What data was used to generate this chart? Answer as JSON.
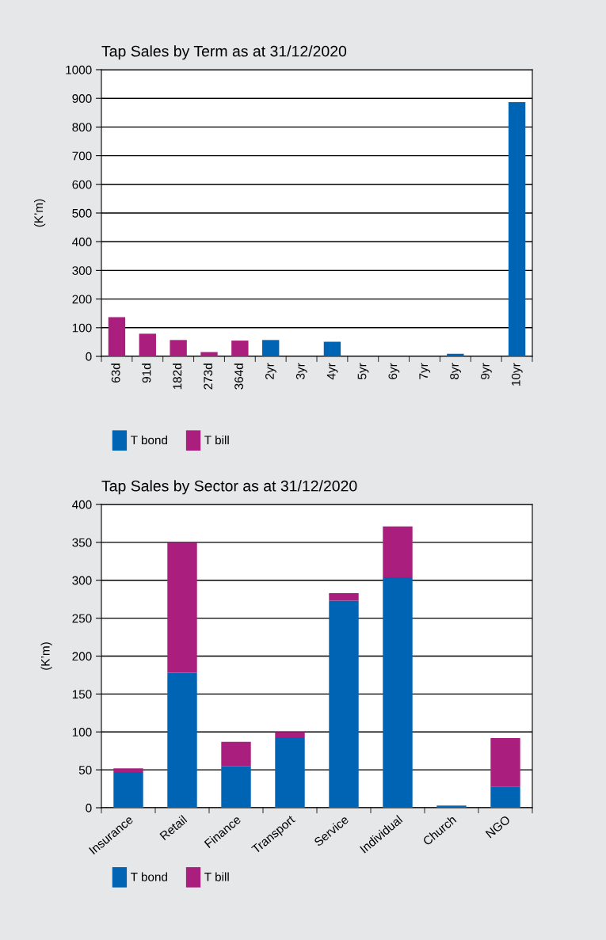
{
  "chart_data": [
    {
      "type": "bar",
      "title": "Tap Sales by Term as at 31/12/2020",
      "ylabel": "(K’m)",
      "stacked": true,
      "categories": [
        "63d",
        "91d",
        "182d",
        "273d",
        "364d",
        "2yr",
        "3yr",
        "4yr",
        "5yr",
        "6yr",
        "7yr",
        "8yr",
        "9yr",
        "10yr"
      ],
      "series": [
        {
          "name": "T bond",
          "color": "#0064b4",
          "values": [
            null,
            null,
            null,
            null,
            null,
            57,
            null,
            51,
            null,
            null,
            null,
            9,
            null,
            887
          ]
        },
        {
          "name": "T bill",
          "color": "#aa1f7e",
          "values": [
            137,
            79,
            57,
            15,
            55,
            null,
            null,
            null,
            null,
            null,
            null,
            null,
            null,
            null
          ]
        }
      ],
      "ylim": [
        0,
        1000
      ],
      "yticks": [
        0,
        100,
        200,
        300,
        400,
        500,
        600,
        700,
        800,
        900,
        1000
      ],
      "grid": "y",
      "legend": "bottom left"
    },
    {
      "type": "bar",
      "title": "Tap Sales by Sector as at 31/12/2020",
      "ylabel": "(K’m)",
      "stacked": true,
      "categories": [
        "Insurance",
        "Retail",
        "Finance",
        "Transport",
        "Service",
        "Individual",
        "Church",
        "NGO"
      ],
      "series": [
        {
          "name": "T bond",
          "color": "#0064b4",
          "values": [
            47,
            178,
            55,
            93,
            273,
            304,
            3,
            28
          ]
        },
        {
          "name": "T bill",
          "color": "#aa1f7e",
          "values": [
            5,
            172,
            32,
            7,
            10,
            67,
            null,
            64
          ]
        }
      ],
      "ylim": [
        0,
        400
      ],
      "yticks": [
        0,
        50,
        100,
        150,
        200,
        250,
        300,
        350,
        400
      ],
      "grid": "y",
      "legend": "bottom left"
    }
  ]
}
